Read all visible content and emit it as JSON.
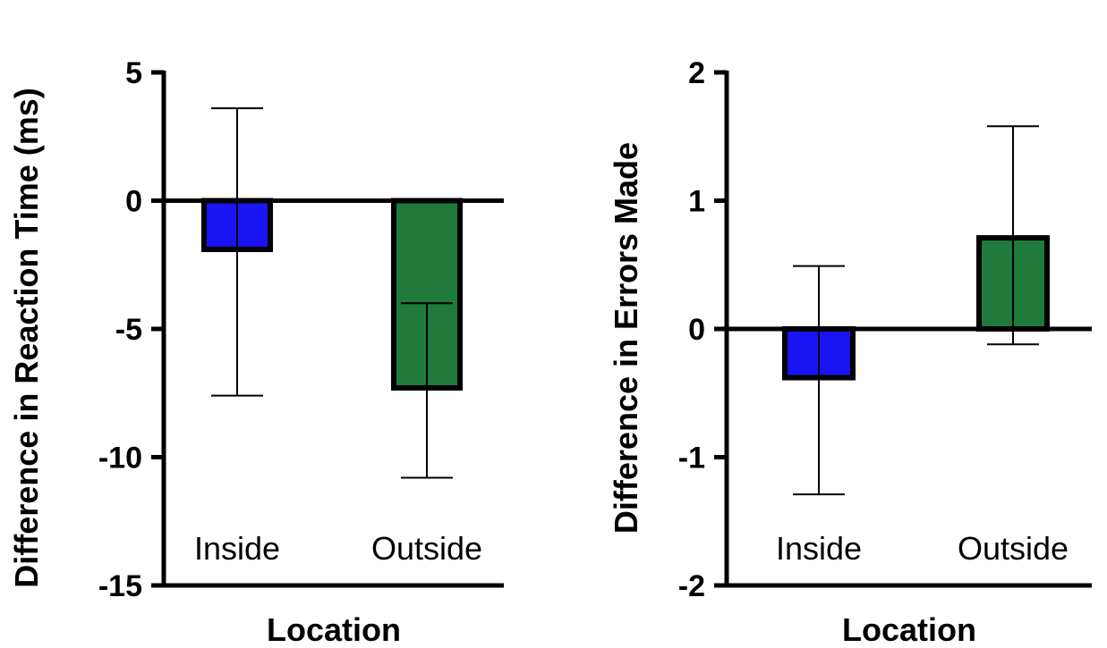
{
  "chart_data": [
    {
      "type": "bar",
      "categories": [
        "Inside",
        "Outside"
      ],
      "values": [
        -1.9,
        -7.3
      ],
      "error_low": [
        -7.6,
        -10.8
      ],
      "error_high": [
        3.6,
        -4.0
      ],
      "colors": [
        "#1a14f5",
        "#1f7a3c"
      ],
      "xlabel": "Location",
      "ylabel": "Difference in Reaction Time (ms)",
      "ylim": [
        -15,
        5
      ],
      "yticks": [
        5,
        0,
        -5,
        -10,
        -15
      ],
      "ytick_labels": [
        "5",
        "0",
        "-5",
        "-10",
        "-15"
      ],
      "grid": false
    },
    {
      "type": "bar",
      "categories": [
        "Inside",
        "Outside"
      ],
      "values": [
        -0.38,
        0.71
      ],
      "error_low": [
        -1.29,
        -0.12
      ],
      "error_high": [
        0.49,
        1.58
      ],
      "colors": [
        "#1a14f5",
        "#1f7a3c"
      ],
      "xlabel": "Location",
      "ylabel": "Difference in Errors Made",
      "ylim": [
        -2,
        2
      ],
      "yticks": [
        2,
        1,
        0,
        -1,
        -2
      ],
      "ytick_labels": [
        "2",
        "1",
        "0",
        "-1",
        "-2"
      ],
      "grid": false
    }
  ]
}
